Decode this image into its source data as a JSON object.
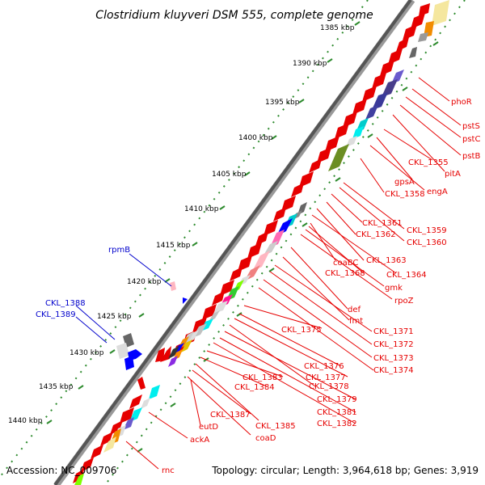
{
  "title": "Clostridium kluyveri DSM 555, complete genome",
  "footer": {
    "accession": "Accession: NC_009706",
    "summary": "Topology: circular; Length: 3,964,618 bp; Genes: 3,919"
  },
  "ticks": [
    "1385 kbp",
    "1390 kbp",
    "1395 kbp",
    "1400 kbp",
    "1405 kbp",
    "1410 kbp",
    "1415 kbp",
    "1420 kbp",
    "1425 kbp",
    "1430 kbp",
    "1435 kbp",
    "1440 kbp"
  ],
  "genes_right": [
    "phoR",
    "pstS",
    "pstC",
    "pstB",
    "pitA",
    "CKL_1355",
    "gpsA",
    "engA",
    "CKL_1358",
    "CKL_1359",
    "CKL_1360",
    "CKL_1361",
    "CKL_1362",
    "CKL_1363",
    "CKL_1364",
    "coaBC",
    "CKL_1368",
    "gmk",
    "rpoZ",
    "def",
    "fmt",
    "CKL_1371",
    "CKL_1372",
    "CKL_1373",
    "CKL_1374",
    "CKL_1375",
    "CKL_1376",
    "CKL_1377",
    "CKL_1378",
    "CKL_1379",
    "CKL_1381",
    "CKL_1382",
    "CKL_1383",
    "CKL_1384",
    "CKL_1385",
    "CKL_1387",
    "coaD",
    "eutD",
    "ackA",
    "rnc"
  ],
  "genes_left": [
    "rpmB",
    "CKL_1388",
    "CKL_1389"
  ],
  "colors": {
    "forward": "#e60000",
    "reverse": "#0000cc",
    "backbone": "#555555",
    "tick": "#2e8b2e"
  }
}
